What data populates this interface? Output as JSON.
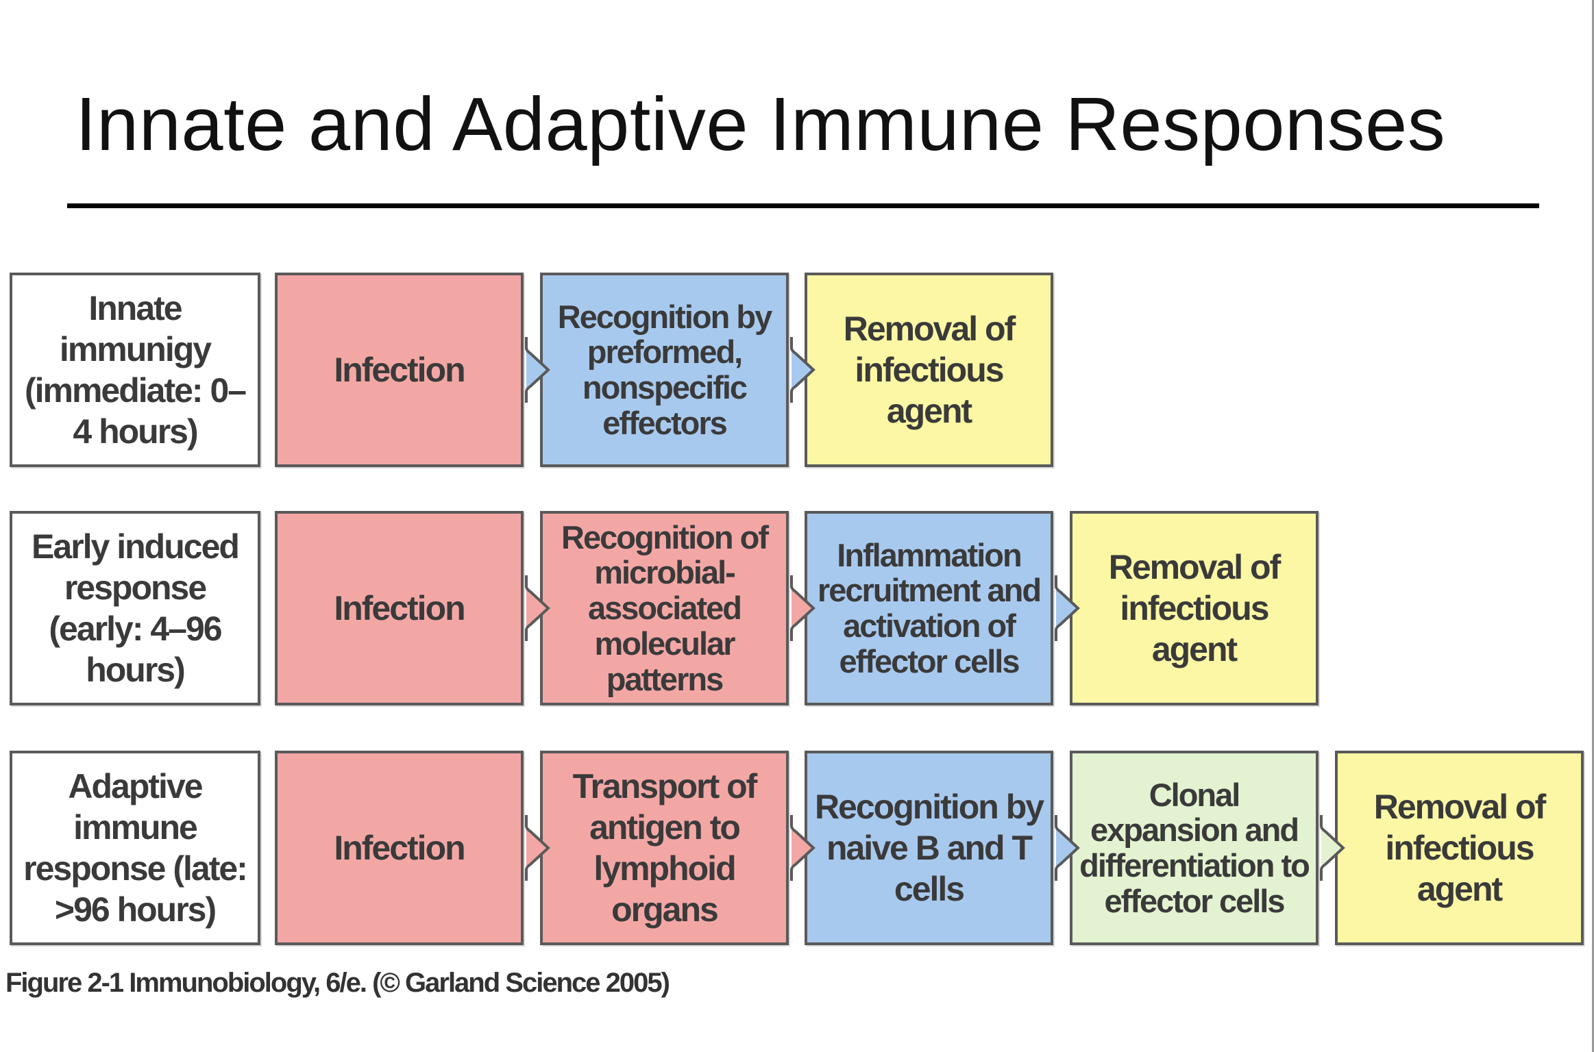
{
  "title": "Innate and Adaptive Immune Responses",
  "colors": {
    "label": "#ffffff",
    "infection": "#f3a7a5",
    "recognition": "#a8c9ee",
    "removal": "#fbf7a4",
    "clonal": "#e3f2d0",
    "border": "#5a5a5a"
  },
  "rows": [
    {
      "label": "Innate immunigy (immediate: 0–4 hours)",
      "steps": [
        "Infection",
        "Recognition by preformed, nonspecific effectors",
        "Removal of infectious agent"
      ]
    },
    {
      "label": "Early induced response (early: 4–96 hours)",
      "steps": [
        "Infection",
        "Recognition of microbial-associated molecular patterns",
        "Inflammation recruitment and activation of effector cells",
        "Removal of infectious agent"
      ]
    },
    {
      "label": "Adaptive immune response (late: >96 hours)",
      "steps": [
        "Infection",
        "Transport of antigen to lymphoid organs",
        "Recognition by naive B and T cells",
        "Clonal expansion and differentiation to effector cells",
        "Removal of infectious agent"
      ]
    }
  ],
  "caption": "Figure 2-1 Immunobiology, 6/e. (© Garland Science 2005)"
}
